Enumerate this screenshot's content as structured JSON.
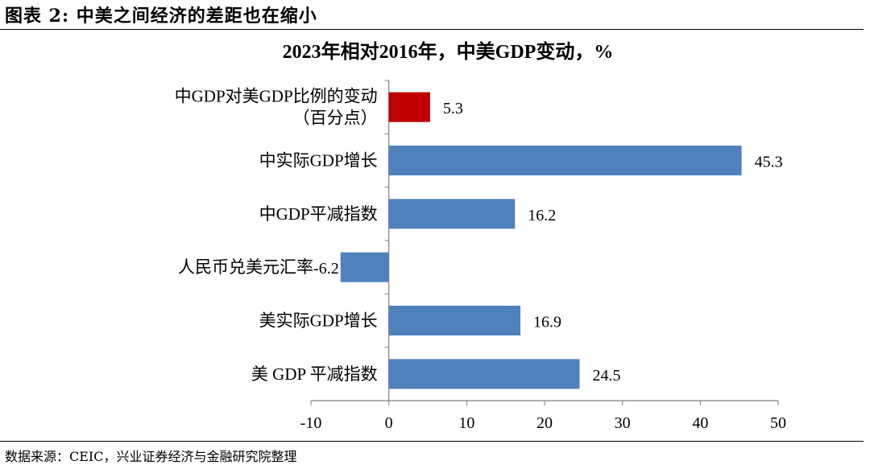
{
  "figure": {
    "label": "图表 2:",
    "title": "中美之间经济的差距也在缩小"
  },
  "source": "数据来源：CEIC，兴业证券经济与金融研究院整理",
  "chart_data": {
    "type": "bar",
    "orientation": "horizontal",
    "title": "2023年相对2016年，中美GDP变动，%",
    "categories": [
      [
        "中GDP对美GDP比例的变动",
        "（百分点）"
      ],
      [
        "中实际GDP增长"
      ],
      [
        "中GDP平减指数"
      ],
      [
        "人民币兑美元汇率"
      ],
      [
        "美实际GDP增长"
      ],
      [
        "美 GDP 平减指数"
      ]
    ],
    "values": [
      5.3,
      45.3,
      16.2,
      -6.2,
      16.9,
      24.5
    ],
    "data_labels": [
      "5.3",
      "45.3",
      "16.2",
      "-6.2",
      "16.9",
      "24.5"
    ],
    "xlim": [
      -10,
      50
    ],
    "xticks": [
      "-10",
      "0",
      "10",
      "20",
      "30",
      "40",
      "50"
    ],
    "colors": [
      "#C00000",
      "#4F81BD",
      "#4F81BD",
      "#4F81BD",
      "#4F81BD",
      "#4F81BD"
    ],
    "grid": false,
    "legend": "none"
  }
}
